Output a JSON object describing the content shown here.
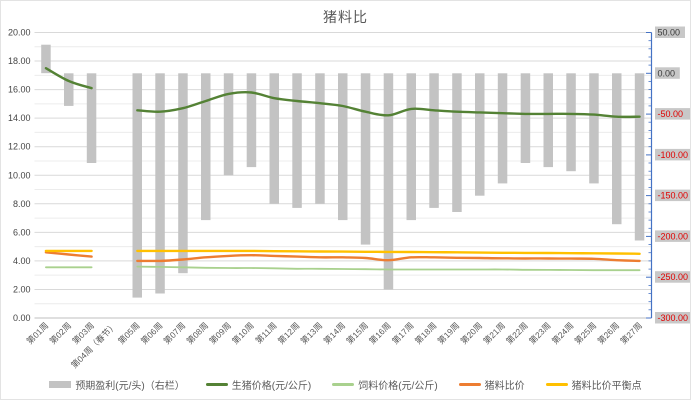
{
  "title": "猪料比",
  "colors": {
    "bar": "#c3c3c3",
    "pig_price": "#548235",
    "feed_price": "#a9d18e",
    "ratio": "#ed7d31",
    "breakeven": "#ffc000",
    "grid_major": "#d9d9d9",
    "grid_minor": "#ececec",
    "axis_text": "#595959",
    "right_axis_line": "#4472c4",
    "right_axis_negative": "#e00000",
    "right_axis_label_bg": "#c8c8c8",
    "x_axis_line": "#bfbfbf"
  },
  "legend": {
    "items": [
      {
        "id": "expected-profit",
        "type": "bar",
        "color": "#c3c3c3",
        "label": "预期盈利(元/头)（右栏）"
      },
      {
        "id": "pig-price",
        "type": "line",
        "color": "#548235",
        "label": "生猪价格(元/公斤)"
      },
      {
        "id": "feed-price",
        "type": "line",
        "color": "#a9d18e",
        "label": "饲料价格(元/公斤)"
      },
      {
        "id": "pig-feed-ratio",
        "type": "line",
        "color": "#ed7d31",
        "label": "猪料比价"
      },
      {
        "id": "breakeven-point",
        "type": "line",
        "color": "#ffc000",
        "label": "猪料比价平衡点"
      }
    ]
  },
  "chart_data": {
    "type": "combo-bar-line",
    "title": "猪料比",
    "legend_position": "bottom",
    "grid": "horizontal minor every 1.0, major every 2.0",
    "categories": [
      "第01周",
      "第02周",
      "第03周",
      "第04周（春节）",
      "第05周",
      "第06周",
      "第07周",
      "第08周",
      "第09周",
      "第10周",
      "第11周",
      "第12周",
      "第13周",
      "第14周",
      "第15周",
      "第16周",
      "第17周",
      "第18周",
      "第19周",
      "第20周",
      "第21周",
      "第22周",
      "第23周",
      "第24周",
      "第25周",
      "第26周",
      "第27周"
    ],
    "bar_series": {
      "id": "expected-profit",
      "name": "预期盈利(元/头)（右栏）",
      "axis": "right",
      "color": "#c3c3c3",
      "values": [
        35,
        -40,
        -110,
        null,
        -275,
        -270,
        -245,
        -180,
        -125,
        -115,
        -160,
        -165,
        -160,
        -180,
        -210,
        -265,
        -180,
        -165,
        -170,
        -150,
        -135,
        -110,
        -115,
        -120,
        -135,
        -185,
        -205
      ]
    },
    "line_series": [
      {
        "id": "pig-price",
        "name": "生猪价格(元/公斤)",
        "axis": "left",
        "color": "#548235",
        "width": 2.4,
        "values": [
          17.5,
          16.6,
          16.1,
          null,
          14.55,
          14.45,
          14.7,
          15.2,
          15.7,
          15.8,
          15.4,
          15.2,
          15.05,
          14.85,
          14.45,
          14.2,
          14.65,
          14.55,
          14.45,
          14.4,
          14.35,
          14.3,
          14.3,
          14.3,
          14.25,
          14.1,
          14.1
        ]
      },
      {
        "id": "feed-price",
        "name": "饲料价格(元/公斤)",
        "axis": "left",
        "color": "#a9d18e",
        "width": 1.8,
        "values": [
          3.55,
          3.55,
          3.55,
          null,
          3.6,
          3.58,
          3.55,
          3.52,
          3.5,
          3.5,
          3.48,
          3.45,
          3.45,
          3.43,
          3.42,
          3.4,
          3.4,
          3.4,
          3.4,
          3.4,
          3.4,
          3.38,
          3.37,
          3.36,
          3.35,
          3.35,
          3.35
        ]
      },
      {
        "id": "pig-feed-ratio",
        "name": "猪料比价",
        "axis": "left",
        "color": "#ed7d31",
        "width": 2.4,
        "values": [
          4.6,
          4.45,
          4.3,
          null,
          4.0,
          4.0,
          4.1,
          4.25,
          4.35,
          4.4,
          4.35,
          4.3,
          4.25,
          4.25,
          4.2,
          4.05,
          4.25,
          4.25,
          4.22,
          4.2,
          4.18,
          4.17,
          4.17,
          4.16,
          4.15,
          4.05,
          4.0
        ]
      },
      {
        "id": "breakeven-point",
        "name": "猪料比价平衡点",
        "axis": "left",
        "color": "#ffc000",
        "width": 2.4,
        "values": [
          4.7,
          4.7,
          4.7,
          null,
          4.7,
          4.7,
          4.7,
          4.7,
          4.7,
          4.7,
          4.68,
          4.67,
          4.66,
          4.65,
          4.64,
          4.63,
          4.62,
          4.61,
          4.6,
          4.58,
          4.57,
          4.56,
          4.55,
          4.54,
          4.53,
          4.52,
          4.5
        ]
      }
    ],
    "left_axis": {
      "min": 0,
      "max": 20,
      "step": 2,
      "tick_labels": [
        "0.00",
        "2.00",
        "4.00",
        "6.00",
        "8.00",
        "10.00",
        "12.00",
        "14.00",
        "16.00",
        "18.00",
        "20.00"
      ]
    },
    "right_axis": {
      "min": -300,
      "max": 50,
      "step": 50,
      "tick_labels": [
        "50.00",
        "0.00",
        "-50.00",
        "-100.00",
        "-150.00",
        "-200.00",
        "-250.00",
        "-300.00"
      ],
      "tick_values": [
        50,
        0,
        -50,
        -100,
        -150,
        -200,
        -250,
        -300
      ]
    }
  }
}
